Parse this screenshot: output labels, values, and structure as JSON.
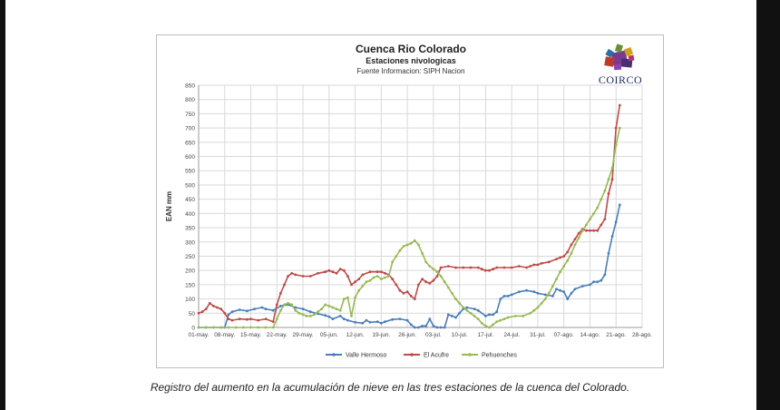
{
  "caption": "Registro del aumento en la acumulación de nieve en las tres estaciones de la cuenca del Colorado.",
  "logo": {
    "text": "COIRCO",
    "icon": "coirco-logo-icon"
  },
  "chart_data": {
    "type": "line",
    "title": "Cuenca Rio Colorado",
    "subtitle": "Estaciones nivologicas",
    "source": "Fuente Informacion: SIPH Nacion",
    "ylabel": "EAN mm",
    "xlabel": "",
    "ylim": [
      0,
      850
    ],
    "yticks": [
      0,
      50,
      100,
      150,
      200,
      250,
      300,
      350,
      400,
      450,
      500,
      550,
      600,
      650,
      700,
      750,
      800,
      850
    ],
    "x_start": "01-may.",
    "x_end": "28-ago.",
    "xticks": [
      "01-may.",
      "08-may.",
      "15-may.",
      "22-may.",
      "29-may.",
      "05-jun.",
      "12-jun.",
      "19-jun.",
      "26-jun.",
      "03-jul.",
      "10-jul.",
      "17-jul.",
      "24-jul.",
      "31-jul.",
      "07-ago.",
      "14-ago.",
      "21-ago.",
      "28-ago."
    ],
    "grid": true,
    "legend_position": "bottom",
    "series": [
      {
        "name": "Valle Hermoso",
        "color": "#4a7ebb",
        "points": [
          [
            "01-may.",
            0
          ],
          [
            "03-may.",
            0
          ],
          [
            "05-may.",
            0
          ],
          [
            "07-may.",
            0
          ],
          [
            "08-may.",
            0
          ],
          [
            "09-may.",
            45
          ],
          [
            "10-may.",
            55
          ],
          [
            "12-may.",
            62
          ],
          [
            "14-may.",
            58
          ],
          [
            "16-may.",
            65
          ],
          [
            "18-may.",
            70
          ],
          [
            "19-may.",
            65
          ],
          [
            "21-may.",
            60
          ],
          [
            "23-may.",
            75
          ],
          [
            "25-may.",
            80
          ],
          [
            "27-may.",
            70
          ],
          [
            "29-may.",
            65
          ],
          [
            "31-may.",
            55
          ],
          [
            "02-jun.",
            48
          ],
          [
            "04-jun.",
            42
          ],
          [
            "05-jun.",
            38
          ],
          [
            "06-jun.",
            30
          ],
          [
            "08-jun.",
            40
          ],
          [
            "09-jun.",
            30
          ],
          [
            "10-jun.",
            25
          ],
          [
            "12-jun.",
            18
          ],
          [
            "14-jun.",
            15
          ],
          [
            "15-jun.",
            25
          ],
          [
            "16-jun.",
            18
          ],
          [
            "18-jun.",
            20
          ],
          [
            "19-jun.",
            15
          ],
          [
            "20-jun.",
            20
          ],
          [
            "22-jun.",
            28
          ],
          [
            "24-jun.",
            30
          ],
          [
            "26-jun.",
            25
          ],
          [
            "27-jun.",
            10
          ],
          [
            "28-jun.",
            0
          ],
          [
            "29-jun.",
            0
          ],
          [
            "30-jun.",
            5
          ],
          [
            "01-jul.",
            5
          ],
          [
            "02-jul.",
            30
          ],
          [
            "03-jul.",
            5
          ],
          [
            "04-jul.",
            0
          ],
          [
            "05-jul.",
            0
          ],
          [
            "06-jul.",
            0
          ],
          [
            "07-jul.",
            45
          ],
          [
            "08-jul.",
            40
          ],
          [
            "09-jul.",
            35
          ],
          [
            "10-jul.",
            50
          ],
          [
            "11-jul.",
            65
          ],
          [
            "12-jul.",
            70
          ],
          [
            "14-jul.",
            65
          ],
          [
            "15-jul.",
            60
          ],
          [
            "17-jul.",
            40
          ],
          [
            "18-jul.",
            45
          ],
          [
            "19-jul.",
            45
          ],
          [
            "20-jul.",
            55
          ],
          [
            "21-jul.",
            100
          ],
          [
            "22-jul.",
            110
          ],
          [
            "23-jul.",
            110
          ],
          [
            "24-jul.",
            115
          ],
          [
            "26-jul.",
            125
          ],
          [
            "28-jul.",
            130
          ],
          [
            "30-jul.",
            125
          ],
          [
            "31-jul.",
            120
          ],
          [
            "02-ago.",
            115
          ],
          [
            "04-ago.",
            110
          ],
          [
            "05-ago.",
            135
          ],
          [
            "06-ago.",
            130
          ],
          [
            "07-ago.",
            125
          ],
          [
            "08-ago.",
            100
          ],
          [
            "09-ago.",
            120
          ],
          [
            "10-ago.",
            135
          ],
          [
            "12-ago.",
            145
          ],
          [
            "14-ago.",
            150
          ],
          [
            "15-ago.",
            160
          ],
          [
            "16-ago.",
            160
          ],
          [
            "17-ago.",
            165
          ],
          [
            "18-ago.",
            185
          ],
          [
            "19-ago.",
            260
          ],
          [
            "20-ago.",
            320
          ],
          [
            "21-ago.",
            370
          ],
          [
            "22-ago.",
            430
          ]
        ]
      },
      {
        "name": "El Acufre",
        "color": "#be4b48",
        "points": [
          [
            "01-may.",
            50
          ],
          [
            "02-may.",
            55
          ],
          [
            "03-may.",
            65
          ],
          [
            "04-may.",
            85
          ],
          [
            "05-may.",
            75
          ],
          [
            "06-may.",
            70
          ],
          [
            "07-may.",
            65
          ],
          [
            "08-may.",
            50
          ],
          [
            "09-may.",
            30
          ],
          [
            "10-may.",
            25
          ],
          [
            "12-may.",
            30
          ],
          [
            "14-may.",
            28
          ],
          [
            "15-may.",
            30
          ],
          [
            "17-may.",
            25
          ],
          [
            "19-may.",
            30
          ],
          [
            "21-may.",
            20
          ],
          [
            "22-may.",
            80
          ],
          [
            "23-may.",
            120
          ],
          [
            "24-may.",
            150
          ],
          [
            "25-may.",
            180
          ],
          [
            "26-may.",
            190
          ],
          [
            "27-may.",
            185
          ],
          [
            "29-may.",
            180
          ],
          [
            "31-may.",
            180
          ],
          [
            "02-jun.",
            190
          ],
          [
            "04-jun.",
            195
          ],
          [
            "05-jun.",
            200
          ],
          [
            "06-jun.",
            195
          ],
          [
            "07-jun.",
            190
          ],
          [
            "08-jun.",
            205
          ],
          [
            "09-jun.",
            200
          ],
          [
            "10-jun.",
            180
          ],
          [
            "11-jun.",
            150
          ],
          [
            "12-jun.",
            160
          ],
          [
            "13-jun.",
            170
          ],
          [
            "14-jun.",
            185
          ],
          [
            "16-jun.",
            195
          ],
          [
            "18-jun.",
            195
          ],
          [
            "19-jun.",
            195
          ],
          [
            "20-jun.",
            190
          ],
          [
            "21-jun.",
            185
          ],
          [
            "22-jun.",
            170
          ],
          [
            "23-jun.",
            150
          ],
          [
            "24-jun.",
            130
          ],
          [
            "25-jun.",
            120
          ],
          [
            "26-jun.",
            125
          ],
          [
            "27-jun.",
            110
          ],
          [
            "28-jun.",
            100
          ],
          [
            "29-jun.",
            150
          ],
          [
            "30-jun.",
            170
          ],
          [
            "01-jul.",
            160
          ],
          [
            "02-jul.",
            155
          ],
          [
            "03-jul.",
            165
          ],
          [
            "04-jul.",
            180
          ],
          [
            "05-jul.",
            210
          ],
          [
            "07-jul.",
            215
          ],
          [
            "09-jul.",
            210
          ],
          [
            "11-jul.",
            210
          ],
          [
            "13-jul.",
            210
          ],
          [
            "15-jul.",
            210
          ],
          [
            "16-jul.",
            205
          ],
          [
            "17-jul.",
            200
          ],
          [
            "18-jul.",
            200
          ],
          [
            "19-jul.",
            205
          ],
          [
            "20-jul.",
            210
          ],
          [
            "22-jul.",
            210
          ],
          [
            "24-jul.",
            210
          ],
          [
            "26-jul.",
            215
          ],
          [
            "28-jul.",
            210
          ],
          [
            "29-jul.",
            215
          ],
          [
            "30-jul.",
            220
          ],
          [
            "31-jul.",
            220
          ],
          [
            "01-ago.",
            225
          ],
          [
            "03-ago.",
            230
          ],
          [
            "05-ago.",
            240
          ],
          [
            "06-ago.",
            245
          ],
          [
            "07-ago.",
            250
          ],
          [
            "08-ago.",
            265
          ],
          [
            "09-ago.",
            290
          ],
          [
            "10-ago.",
            310
          ],
          [
            "11-ago.",
            330
          ],
          [
            "12-ago.",
            345
          ],
          [
            "13-ago.",
            340
          ],
          [
            "14-ago.",
            340
          ],
          [
            "15-ago.",
            340
          ],
          [
            "16-ago.",
            340
          ],
          [
            "17-ago.",
            360
          ],
          [
            "18-ago.",
            380
          ],
          [
            "19-ago.",
            470
          ],
          [
            "20-ago.",
            520
          ],
          [
            "21-ago.",
            700
          ],
          [
            "22-ago.",
            780
          ]
        ]
      },
      {
        "name": "Pehuenches",
        "color": "#98b954",
        "points": [
          [
            "01-may.",
            0
          ],
          [
            "03-may.",
            0
          ],
          [
            "05-may.",
            0
          ],
          [
            "07-may.",
            0
          ],
          [
            "09-may.",
            0
          ],
          [
            "11-may.",
            0
          ],
          [
            "13-may.",
            0
          ],
          [
            "15-may.",
            0
          ],
          [
            "17-may.",
            0
          ],
          [
            "19-may.",
            0
          ],
          [
            "21-may.",
            0
          ],
          [
            "22-may.",
            30
          ],
          [
            "23-may.",
            60
          ],
          [
            "24-may.",
            80
          ],
          [
            "25-may.",
            85
          ],
          [
            "26-may.",
            80
          ],
          [
            "27-may.",
            60
          ],
          [
            "28-may.",
            50
          ],
          [
            "29-may.",
            45
          ],
          [
            "30-may.",
            40
          ],
          [
            "31-may.",
            40
          ],
          [
            "01-jun.",
            45
          ],
          [
            "02-jun.",
            55
          ],
          [
            "03-jun.",
            65
          ],
          [
            "04-jun.",
            80
          ],
          [
            "05-jun.",
            75
          ],
          [
            "06-jun.",
            70
          ],
          [
            "07-jun.",
            65
          ],
          [
            "08-jun.",
            60
          ],
          [
            "09-jun.",
            100
          ],
          [
            "10-jun.",
            105
          ],
          [
            "11-jun.",
            40
          ],
          [
            "12-jun.",
            105
          ],
          [
            "13-jun.",
            130
          ],
          [
            "14-jun.",
            145
          ],
          [
            "15-jun.",
            160
          ],
          [
            "16-jun.",
            165
          ],
          [
            "17-jun.",
            175
          ],
          [
            "18-jun.",
            180
          ],
          [
            "19-jun.",
            170
          ],
          [
            "20-jun.",
            175
          ],
          [
            "21-jun.",
            180
          ],
          [
            "22-jun.",
            230
          ],
          [
            "23-jun.",
            250
          ],
          [
            "24-jun.",
            270
          ],
          [
            "25-jun.",
            285
          ],
          [
            "26-jun.",
            290
          ],
          [
            "27-jun.",
            295
          ],
          [
            "28-jun.",
            305
          ],
          [
            "29-jun.",
            290
          ],
          [
            "30-jun.",
            260
          ],
          [
            "01-jul.",
            230
          ],
          [
            "02-jul.",
            215
          ],
          [
            "03-jul.",
            205
          ],
          [
            "04-jul.",
            195
          ],
          [
            "05-jul.",
            180
          ],
          [
            "06-jul.",
            160
          ],
          [
            "07-jul.",
            140
          ],
          [
            "08-jul.",
            120
          ],
          [
            "09-jul.",
            100
          ],
          [
            "10-jul.",
            85
          ],
          [
            "11-jul.",
            70
          ],
          [
            "12-jul.",
            60
          ],
          [
            "13-jul.",
            50
          ],
          [
            "14-jul.",
            40
          ],
          [
            "15-jul.",
            30
          ],
          [
            "16-jul.",
            15
          ],
          [
            "17-jul.",
            5
          ],
          [
            "18-jul.",
            0
          ],
          [
            "19-jul.",
            10
          ],
          [
            "20-jul.",
            20
          ],
          [
            "21-jul.",
            25
          ],
          [
            "22-jul.",
            30
          ],
          [
            "23-jul.",
            35
          ],
          [
            "25-jul.",
            40
          ],
          [
            "27-jul.",
            40
          ],
          [
            "29-jul.",
            50
          ],
          [
            "30-jul.",
            60
          ],
          [
            "31-jul.",
            70
          ],
          [
            "01-ago.",
            85
          ],
          [
            "02-ago.",
            100
          ],
          [
            "03-ago.",
            120
          ],
          [
            "04-ago.",
            145
          ],
          [
            "05-ago.",
            170
          ],
          [
            "06-ago.",
            195
          ],
          [
            "07-ago.",
            215
          ],
          [
            "08-ago.",
            235
          ],
          [
            "09-ago.",
            260
          ],
          [
            "10-ago.",
            290
          ],
          [
            "11-ago.",
            315
          ],
          [
            "12-ago.",
            340
          ],
          [
            "13-ago.",
            360
          ],
          [
            "14-ago.",
            380
          ],
          [
            "15-ago.",
            400
          ],
          [
            "16-ago.",
            420
          ],
          [
            "17-ago.",
            450
          ],
          [
            "18-ago.",
            480
          ],
          [
            "19-ago.",
            520
          ],
          [
            "20-ago.",
            560
          ],
          [
            "21-ago.",
            640
          ],
          [
            "22-ago.",
            700
          ]
        ]
      }
    ]
  }
}
